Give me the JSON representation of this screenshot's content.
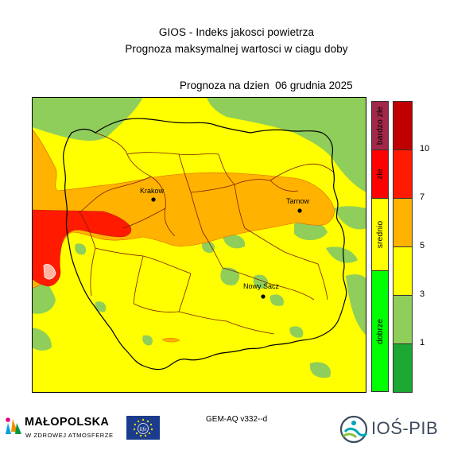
{
  "header": {
    "title_line1": "GIOS - Indeks jakosci powietrza",
    "title_line2": "Prognoza maksymalnej wartosci w ciagu doby",
    "forecast_date_line": "Prognoza na dzien  06 grudnia 2025"
  },
  "map": {
    "cities": [
      {
        "name": "Krakow"
      },
      {
        "name": "Tarnow"
      },
      {
        "name": "Nowy Sacz"
      }
    ],
    "colors": {
      "green_light": "#8fce5a",
      "yellow": "#ffff00",
      "orange": "#ffb300",
      "red": "#ff1a00",
      "border": "#7a1f00"
    }
  },
  "legend": {
    "categories": [
      {
        "label": "bardzo złe",
        "color": "#a2284a"
      },
      {
        "label": "złe",
        "color": "#ff0000"
      },
      {
        "label": "srednio",
        "color": "#ffff00"
      },
      {
        "label": "dobrze",
        "color": "#00ff00"
      }
    ],
    "value_colors": [
      "#c00000",
      "#ff1a00",
      "#ffb300",
      "#ffff00",
      "#8fce5a",
      "#1ca832"
    ],
    "ticks": [
      "10",
      "7",
      "5",
      "3",
      "1"
    ]
  },
  "footer": {
    "model": "GEM-AQ v332--d",
    "malopolska_name": "MAŁOPOLSKA",
    "malopolska_sub": "W ZDROWEJ ATMOSFERZE",
    "eu_logo_text": "life",
    "ios_name": "IOŚ-PIB"
  }
}
